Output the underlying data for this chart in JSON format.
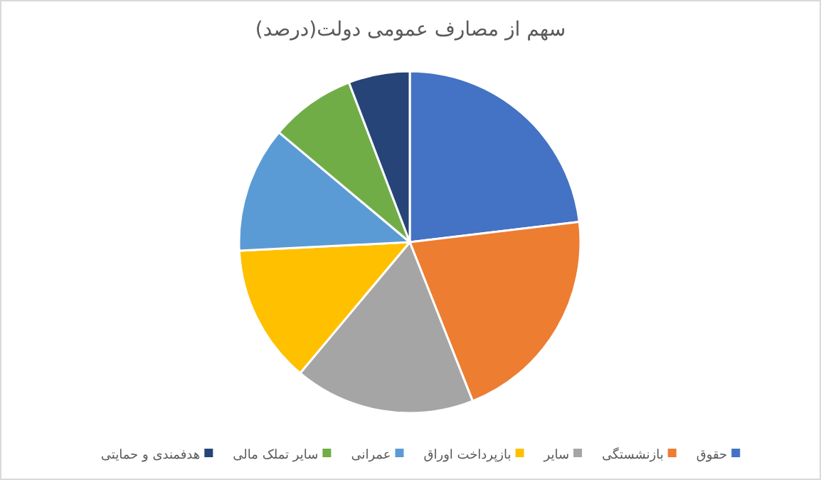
{
  "chart_data": {
    "type": "pie",
    "title": "سهم از مصارف عمومی دولت(درصد)",
    "categories": [
      "حقوق",
      "بازنشستگی",
      "سایر",
      "بازپرداخت اوراق",
      "عمرانی",
      "سایر تملک مالی",
      "هدفمندی و حمایتی"
    ],
    "values": [
      23.1,
      20.9,
      17.1,
      13.1,
      11.9,
      8.1,
      5.8
    ],
    "colors": [
      "#4472c4",
      "#ed7d31",
      "#a5a5a5",
      "#ffc000",
      "#5b9bd5",
      "#70ad47",
      "#264478"
    ],
    "legend": "bottom"
  }
}
